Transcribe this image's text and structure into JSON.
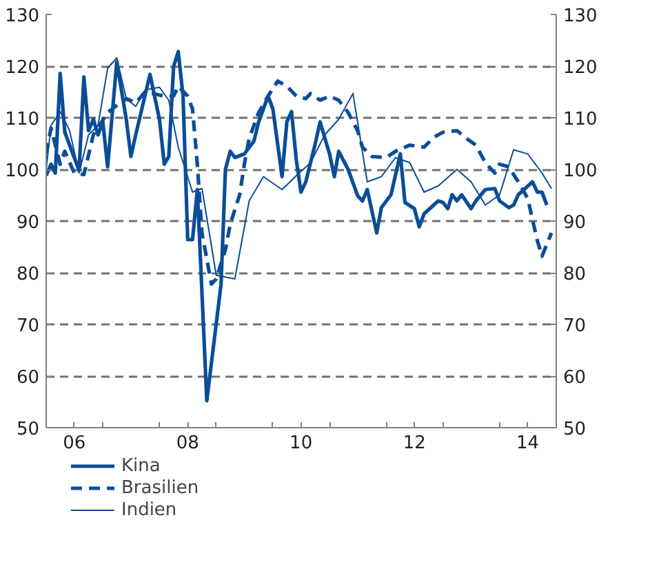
{
  "chart_data": {
    "type": "line",
    "ylim": [
      50,
      130
    ],
    "yticks": [
      50,
      60,
      70,
      80,
      90,
      100,
      110,
      120,
      130
    ],
    "y2lim": [
      50,
      130
    ],
    "y2ticks": [
      50,
      60,
      70,
      80,
      90,
      100,
      110,
      120,
      130
    ],
    "xlim": [
      "2006-01",
      "2015-01"
    ],
    "xticks": [
      {
        "value": "2006-01",
        "label": null
      },
      {
        "value": "2006-07",
        "label": "06"
      },
      {
        "value": "2007-01",
        "label": null
      },
      {
        "value": "2008-01",
        "label": null
      },
      {
        "value": "2008-07",
        "label": "08"
      },
      {
        "value": "2009-01",
        "label": null
      },
      {
        "value": "2010-01",
        "label": null
      },
      {
        "value": "2010-07",
        "label": "10"
      },
      {
        "value": "2011-01",
        "label": null
      },
      {
        "value": "2012-01",
        "label": null
      },
      {
        "value": "2012-07",
        "label": "12"
      },
      {
        "value": "2013-01",
        "label": null
      },
      {
        "value": "2014-01",
        "label": null
      },
      {
        "value": "2014-07",
        "label": "14"
      },
      {
        "value": "2015-01",
        "label": null
      }
    ],
    "grid": "y",
    "legend": "bottom",
    "marker": "none",
    "series": [
      {
        "name": "Kina",
        "color": "#0b4d97",
        "line_style": "solid",
        "x": [
          "2006-01",
          "2006-02",
          "2006-03",
          "2006-04",
          "2006-05",
          "2006-08",
          "2006-09",
          "2006-10",
          "2006-11",
          "2006-12",
          "2007-01",
          "2007-02",
          "2007-04",
          "2007-06",
          "2007-07",
          "2007-08",
          "2007-11",
          "2008-01",
          "2008-02",
          "2008-03",
          "2008-04",
          "2008-05",
          "2008-06",
          "2008-07",
          "2008-08",
          "2008-09",
          "2008-11",
          "2009-02",
          "2009-03",
          "2009-04",
          "2009-05",
          "2009-07",
          "2009-09",
          "2009-10",
          "2009-12",
          "2010-01",
          "2010-03",
          "2010-04",
          "2010-05",
          "2010-06",
          "2010-07",
          "2010-08",
          "2010-10",
          "2010-11",
          "2011-01",
          "2011-02",
          "2011-03",
          "2011-05",
          "2011-07",
          "2011-08",
          "2011-09",
          "2011-11",
          "2011-12",
          "2012-02",
          "2012-04",
          "2012-05",
          "2012-07",
          "2012-08",
          "2012-09",
          "2012-12",
          "2013-01",
          "2013-02",
          "2013-03",
          "2013-04",
          "2013-05",
          "2013-07",
          "2013-08",
          "2013-10",
          "2013-12",
          "2014-01",
          "2014-03",
          "2014-04",
          "2014-05",
          "2014-08",
          "2014-09",
          "2014-10",
          "2014-11"
        ],
        "values": [
          98.8,
          101,
          99.3,
          118.6,
          107.2,
          99.8,
          117.9,
          107.5,
          109.7,
          106.7,
          109.2,
          100.5,
          120.8,
          109.7,
          102.5,
          106.7,
          118.4,
          109.7,
          101,
          102.5,
          119.9,
          122.8,
          114.2,
          86.4,
          86.4,
          96.1,
          55.2,
          77.8,
          100,
          103.5,
          102.3,
          103,
          105.5,
          109.2,
          114.2,
          111.7,
          98.6,
          109.2,
          111.2,
          101.8,
          95.6,
          97.6,
          105,
          109.2,
          103,
          98.6,
          103.5,
          100,
          94.9,
          93.9,
          96.1,
          87.7,
          92.6,
          95.1,
          103,
          93.6,
          92.4,
          88.9,
          91.4,
          93.9,
          93.6,
          92.4,
          95.1,
          93.9,
          95.1,
          92.4,
          93.9,
          96.1,
          96.3,
          93.9,
          92.6,
          93.1,
          95.1,
          97.6,
          95.6,
          95.6,
          93.1
        ]
      },
      {
        "name": "Brasilien",
        "color": "#0b4d97",
        "line_style": "dashed",
        "x": [
          "2006-01",
          "2006-02",
          "2006-04",
          "2006-05",
          "2006-07",
          "2006-09",
          "2006-11",
          "2007-02",
          "2007-04",
          "2007-06",
          "2007-08",
          "2007-10",
          "2008-02",
          "2008-04",
          "2008-05",
          "2008-07",
          "2008-08",
          "2008-09",
          "2008-10",
          "2008-12",
          "2009-01",
          "2009-03",
          "2009-04",
          "2009-06",
          "2009-07",
          "2009-08",
          "2009-10",
          "2009-12",
          "2010-02",
          "2010-04",
          "2010-06",
          "2010-08",
          "2010-09",
          "2010-11",
          "2011-01",
          "2011-03",
          "2011-05",
          "2011-07",
          "2011-08",
          "2011-10",
          "2012-01",
          "2012-03",
          "2012-06",
          "2012-09",
          "2012-11",
          "2013-01",
          "2013-04",
          "2013-06",
          "2013-08",
          "2013-10",
          "2013-12",
          "2014-01",
          "2014-03",
          "2014-05",
          "2014-07",
          "2014-09",
          "2014-10",
          "2014-12"
        ],
        "values": [
          103,
          108,
          101,
          103.5,
          99.3,
          99,
          106.7,
          111,
          112.4,
          113.7,
          112.9,
          115,
          114.2,
          114.2,
          116.1,
          114.2,
          111.7,
          101,
          87.7,
          77.8,
          78.8,
          84.5,
          89.4,
          95.1,
          101,
          106,
          111,
          114.2,
          117.1,
          116.1,
          114.2,
          113.7,
          114.7,
          113.4,
          114.2,
          113.4,
          111,
          107.5,
          104.3,
          102.5,
          102.3,
          103.5,
          104.7,
          104.3,
          106.2,
          107.2,
          107.5,
          106,
          104.7,
          101.3,
          99.3,
          101,
          100.5,
          97.6,
          94.4,
          86.2,
          83.2,
          87.7
        ]
      },
      {
        "name": "Indien",
        "color": "#0b4d97",
        "line_style": "solid",
        "x": [
          "2006-01",
          "2006-02",
          "2006-04",
          "2006-06",
          "2006-08",
          "2006-10",
          "2006-12",
          "2007-02",
          "2007-04",
          "2007-06",
          "2007-08",
          "2007-10",
          "2008-01",
          "2008-03",
          "2008-05",
          "2008-08",
          "2008-10",
          "2009-01",
          "2009-05",
          "2009-08",
          "2009-11",
          "2010-03",
          "2010-06",
          "2010-09",
          "2010-12",
          "2011-03",
          "2011-06",
          "2011-09",
          "2011-12",
          "2012-03",
          "2012-06",
          "2012-09",
          "2012-12",
          "2013-04",
          "2013-07",
          "2013-10",
          "2014-01",
          "2014-04",
          "2014-07",
          "2014-10",
          "2014-12"
        ],
        "values": [
          100,
          108.5,
          111.2,
          107.5,
          99.3,
          106.7,
          108.5,
          119.6,
          121.6,
          113.7,
          112.2,
          115.4,
          115.9,
          113.4,
          104.3,
          95.6,
          96.3,
          79.5,
          78.8,
          93.9,
          98.6,
          96.1,
          98.8,
          101.3,
          106.7,
          109.7,
          114.7,
          97.6,
          98.6,
          102.3,
          101.3,
          95.6,
          96.8,
          100,
          97.6,
          93.1,
          95.1,
          103.8,
          103,
          99.3,
          96.3
        ]
      }
    ]
  }
}
